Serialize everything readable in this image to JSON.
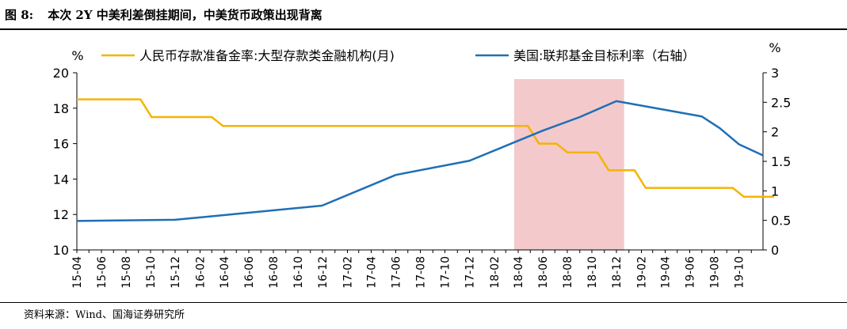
{
  "figure": {
    "number": "图 8:",
    "title": "本次 2Y 中美利差倒挂期间，中美货币政策出现背离",
    "source": "资料来源：Wind、国海证券研究所"
  },
  "chart_data": {
    "type": "line",
    "left_unit": "%",
    "right_unit": "%",
    "ylim_left": [
      10,
      20
    ],
    "yticks_left": [
      10,
      12,
      14,
      16,
      18,
      20
    ],
    "ylim_right": [
      0,
      3
    ],
    "yticks_right": [
      0,
      0.5,
      1,
      1.5,
      2,
      2.5,
      3
    ],
    "yticks_right_labels": [
      "0",
      "0.5",
      "1",
      "1.5",
      "2",
      "2.5",
      "3"
    ],
    "x_start": "2015-04",
    "x_end": "2019-11",
    "x_tick_labels": [
      "15-04",
      "15-06",
      "15-08",
      "15-10",
      "15-12",
      "16-02",
      "16-04",
      "16-06",
      "16-08",
      "16-10",
      "16-12",
      "17-02",
      "17-04",
      "17-06",
      "17-08",
      "17-10",
      "17-12",
      "18-02",
      "18-04",
      "18-06",
      "18-08",
      "18-10",
      "18-12",
      "19-02",
      "19-04",
      "19-06",
      "19-08",
      "19-10"
    ],
    "shaded_period": [
      "2018-03-22",
      "2018-12-20"
    ],
    "legend_position": "top",
    "series": [
      {
        "name": "人民币存款准备金率:大型存款类金融机构(月)",
        "axis": "left",
        "color": "#F5B400",
        "step": true,
        "points": [
          [
            "2015-04-01",
            18.5
          ],
          [
            "2015-04-20",
            18.5
          ],
          [
            "2015-09-06",
            17.5
          ],
          [
            "2016-03-01",
            17.0
          ],
          [
            "2018-04-25",
            16.0
          ],
          [
            "2018-07-05",
            15.5
          ],
          [
            "2018-10-15",
            14.5
          ],
          [
            "2019-01-15",
            13.5
          ],
          [
            "2019-09-16",
            13.0
          ],
          [
            "2019-11-30",
            13.0
          ]
        ]
      },
      {
        "name": "美国:联邦基金目标利率（右轴）",
        "axis": "right",
        "color": "#1F6FB4",
        "step": false,
        "points": [
          [
            "2015-04-01",
            0.49
          ],
          [
            "2015-12-01",
            0.51
          ],
          [
            "2016-11-30",
            0.75
          ],
          [
            "2017-06-01",
            1.27
          ],
          [
            "2017-12-01",
            1.51
          ],
          [
            "2018-06-01",
            2.02
          ],
          [
            "2018-09-01",
            2.25
          ],
          [
            "2018-12-01",
            2.52
          ],
          [
            "2019-07-01",
            2.26
          ],
          [
            "2019-08-15",
            2.06
          ],
          [
            "2019-10-01",
            1.79
          ],
          [
            "2019-11-30",
            1.6
          ]
        ]
      }
    ]
  }
}
